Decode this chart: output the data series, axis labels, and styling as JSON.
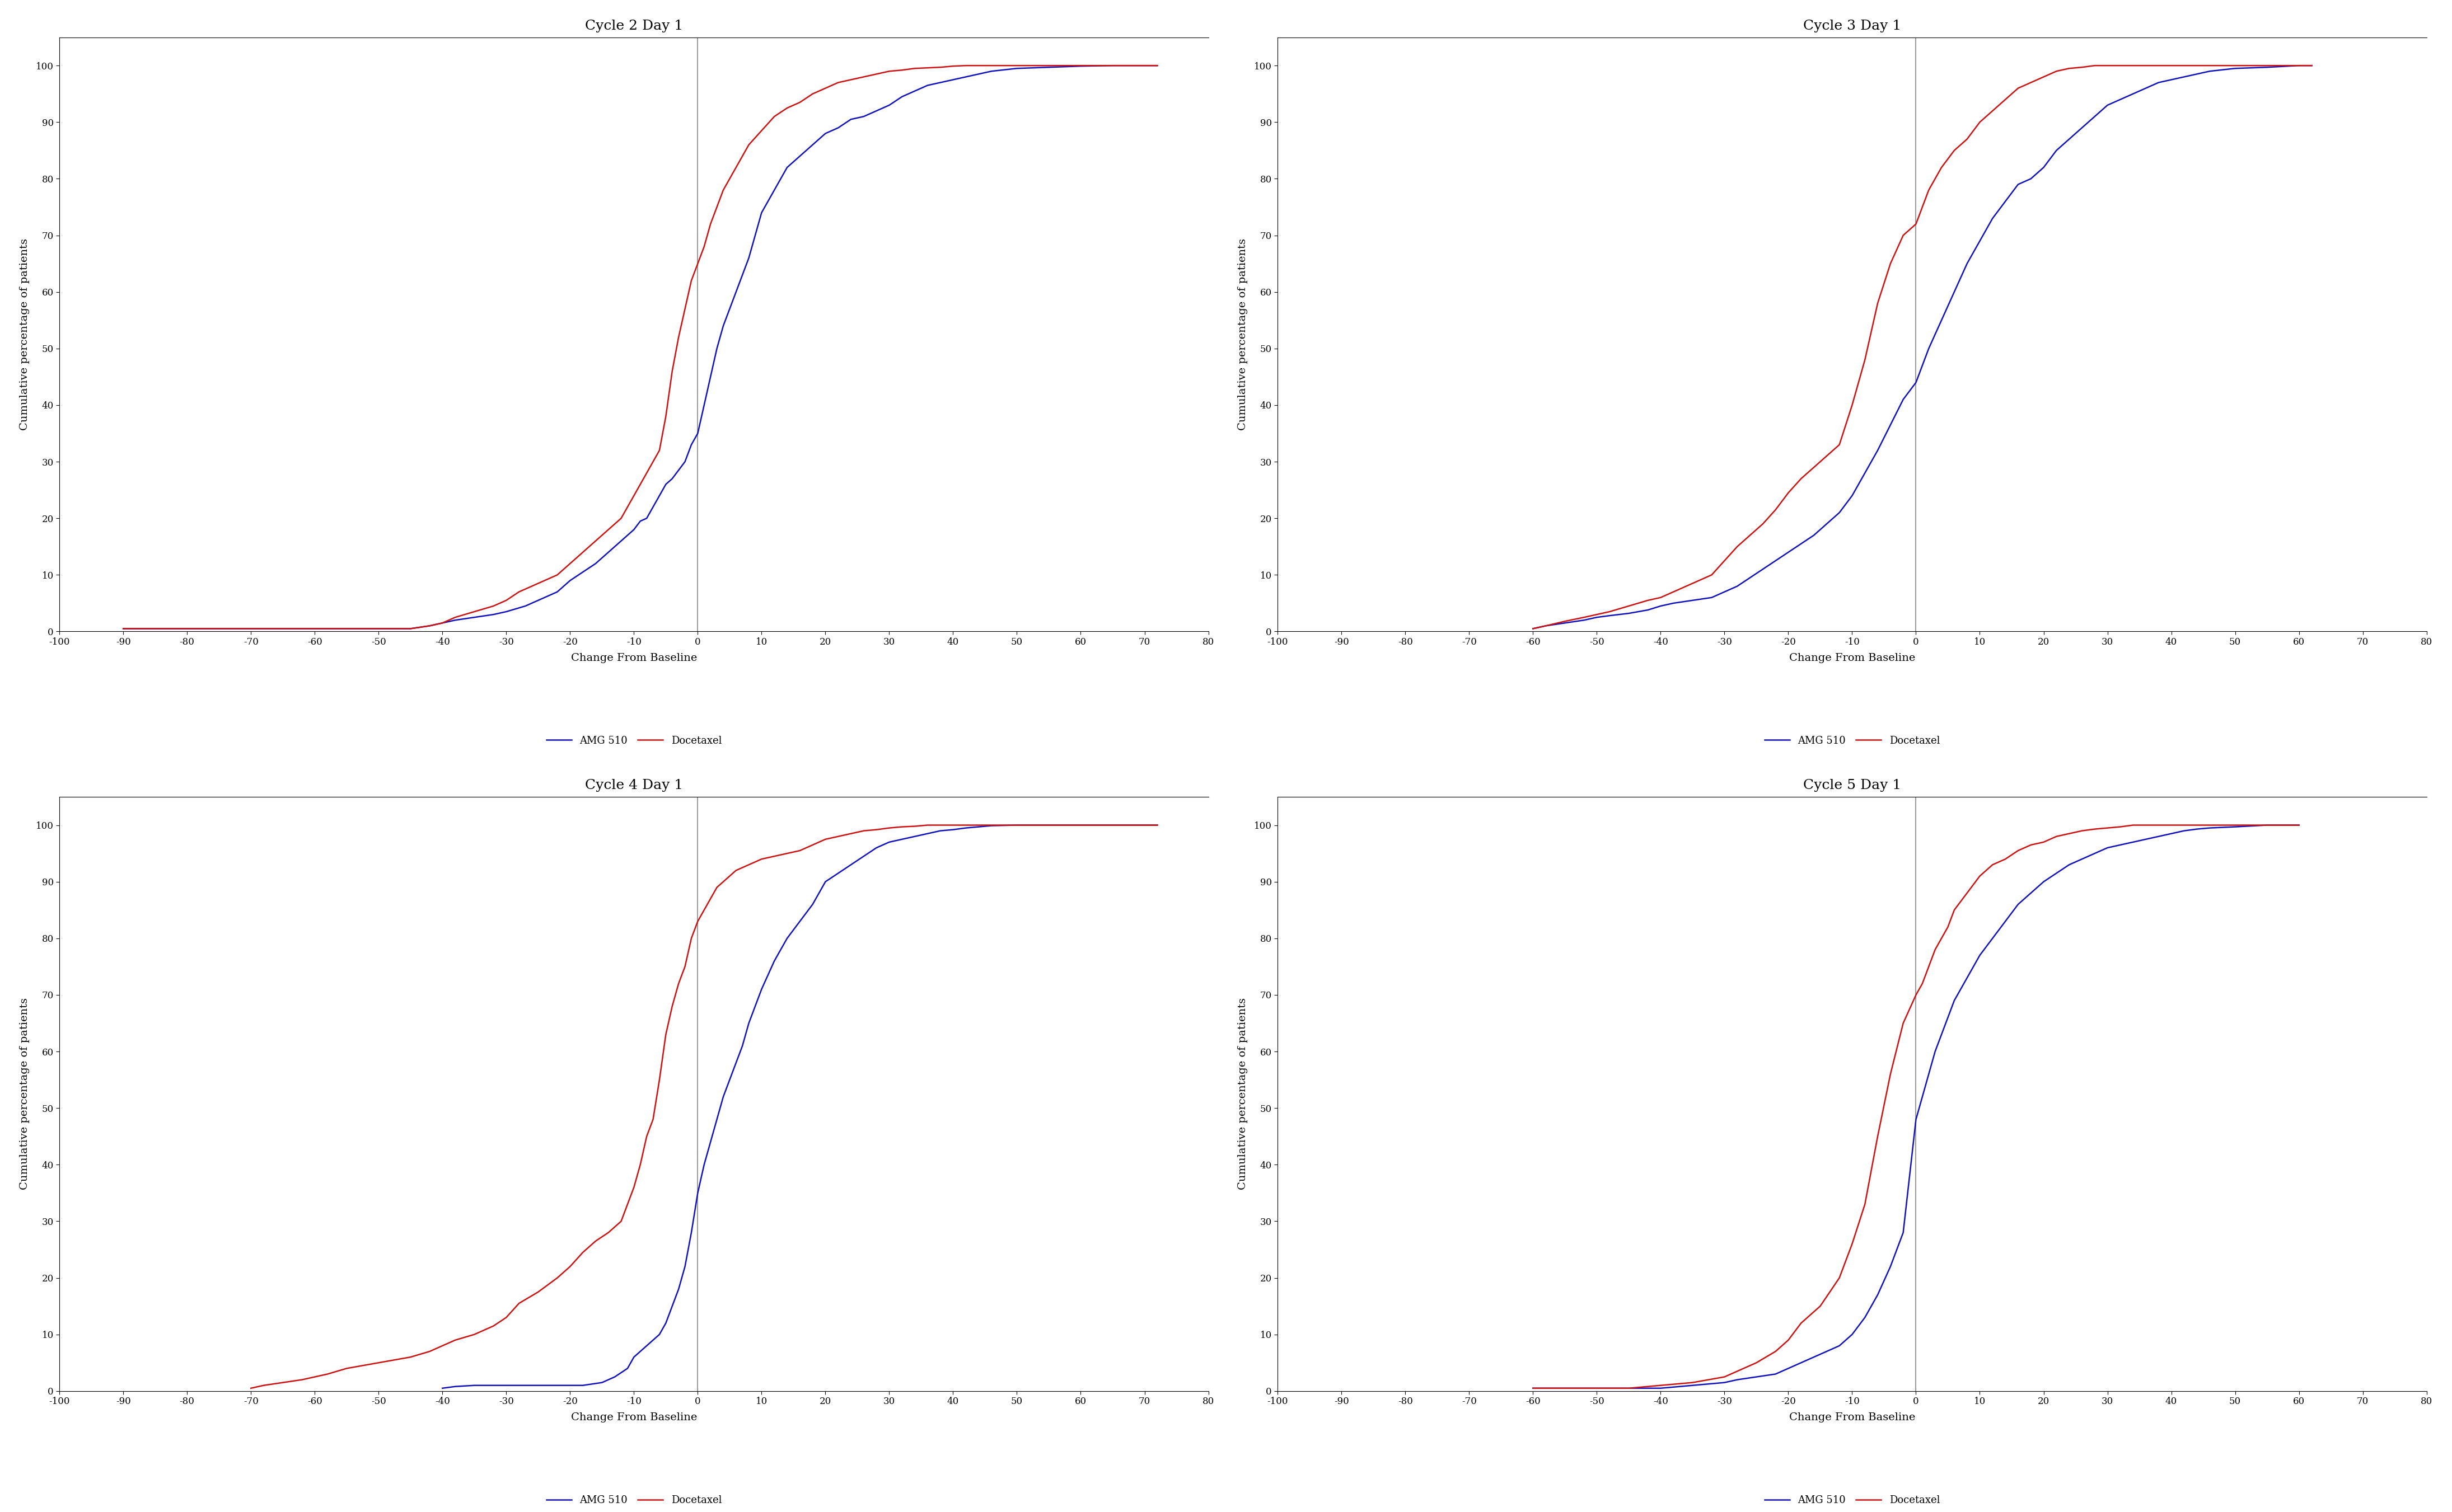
{
  "panels": [
    {
      "title": "Cycle 2 Day 1",
      "xlim": [
        -100,
        80
      ],
      "xticks": [
        -100,
        -90,
        -80,
        -70,
        -60,
        -50,
        -40,
        -30,
        -20,
        -10,
        0,
        10,
        20,
        30,
        40,
        50,
        60,
        70,
        80
      ],
      "amg_x": [
        -90,
        -88,
        -85,
        -82,
        -80,
        -75,
        -70,
        -65,
        -60,
        -55,
        -50,
        -45,
        -42,
        -40,
        -38,
        -35,
        -32,
        -30,
        -27,
        -25,
        -22,
        -20,
        -18,
        -16,
        -14,
        -12,
        -10,
        -9,
        -8,
        -7,
        -6,
        -5,
        -4,
        -3,
        -2,
        -1,
        0,
        1,
        2,
        3,
        4,
        5,
        6,
        7,
        8,
        9,
        10,
        11,
        12,
        14,
        16,
        18,
        20,
        22,
        24,
        26,
        28,
        30,
        32,
        34,
        36,
        38,
        40,
        42,
        44,
        46,
        50,
        55,
        60,
        65,
        70,
        72
      ],
      "amg_y": [
        0.5,
        0.5,
        0.5,
        0.5,
        0.5,
        0.5,
        0.5,
        0.5,
        0.5,
        0.5,
        0.5,
        0.5,
        1.0,
        1.5,
        2.0,
        2.5,
        3.0,
        3.5,
        4.5,
        5.5,
        7.0,
        9.0,
        10.5,
        12.0,
        14.0,
        16.0,
        18.0,
        19.5,
        20.0,
        22.0,
        24.0,
        26.0,
        27.0,
        28.5,
        30.0,
        33.0,
        35.0,
        40.0,
        45.0,
        50.0,
        54.0,
        57.0,
        60.0,
        63.0,
        66.0,
        70.0,
        74.0,
        76.0,
        78.0,
        82.0,
        84.0,
        86.0,
        88.0,
        89.0,
        90.5,
        91.0,
        92.0,
        93.0,
        94.5,
        95.5,
        96.5,
        97.0,
        97.5,
        98.0,
        98.5,
        99.0,
        99.5,
        99.7,
        99.9,
        100.0,
        100.0,
        100.0
      ],
      "doc_x": [
        -90,
        -85,
        -80,
        -75,
        -70,
        -65,
        -60,
        -55,
        -50,
        -45,
        -42,
        -40,
        -38,
        -35,
        -32,
        -30,
        -28,
        -25,
        -22,
        -20,
        -18,
        -16,
        -14,
        -12,
        -11,
        -10,
        -9,
        -8,
        -7,
        -6,
        -5,
        -4,
        -3,
        -2,
        -1,
        0,
        1,
        2,
        3,
        4,
        5,
        6,
        8,
        10,
        12,
        14,
        16,
        18,
        20,
        22,
        24,
        26,
        28,
        30,
        32,
        34,
        36,
        38,
        40,
        42,
        44,
        46,
        50,
        55,
        65,
        70,
        72
      ],
      "doc_y": [
        0.5,
        0.5,
        0.5,
        0.5,
        0.5,
        0.5,
        0.5,
        0.5,
        0.5,
        0.5,
        1.0,
        1.5,
        2.5,
        3.5,
        4.5,
        5.5,
        7.0,
        8.5,
        10.0,
        12.0,
        14.0,
        16.0,
        18.0,
        20.0,
        22.0,
        24.0,
        26.0,
        28.0,
        30.0,
        32.0,
        38.0,
        46.0,
        52.0,
        57.0,
        62.0,
        65.0,
        68.0,
        72.0,
        75.0,
        78.0,
        80.0,
        82.0,
        86.0,
        88.5,
        91.0,
        92.5,
        93.5,
        95.0,
        96.0,
        97.0,
        97.5,
        98.0,
        98.5,
        99.0,
        99.2,
        99.5,
        99.6,
        99.7,
        99.9,
        100.0,
        100.0,
        100.0,
        100.0,
        100.0,
        100.0,
        100.0,
        100.0
      ]
    },
    {
      "title": "Cycle 3 Day 1",
      "xlim": [
        -100,
        80
      ],
      "xticks": [
        -100,
        -90,
        -80,
        -70,
        -60,
        -50,
        -40,
        -30,
        -20,
        -10,
        0,
        10,
        20,
        30,
        40,
        50,
        60,
        70,
        80
      ],
      "amg_x": [
        -60,
        -58,
        -55,
        -52,
        -50,
        -48,
        -45,
        -42,
        -40,
        -38,
        -35,
        -32,
        -30,
        -28,
        -26,
        -24,
        -22,
        -20,
        -18,
        -16,
        -14,
        -12,
        -10,
        -8,
        -6,
        -4,
        -2,
        0,
        2,
        4,
        6,
        8,
        10,
        12,
        14,
        16,
        18,
        20,
        22,
        24,
        26,
        28,
        30,
        32,
        34,
        36,
        38,
        40,
        42,
        44,
        46,
        50,
        55,
        60,
        62
      ],
      "amg_y": [
        0.5,
        1.0,
        1.5,
        2.0,
        2.5,
        2.8,
        3.2,
        3.8,
        4.5,
        5.0,
        5.5,
        6.0,
        7.0,
        8.0,
        9.5,
        11.0,
        12.5,
        14.0,
        15.5,
        17.0,
        19.0,
        21.0,
        24.0,
        28.0,
        32.0,
        36.5,
        41.0,
        44.0,
        50.0,
        55.0,
        60.0,
        65.0,
        69.0,
        73.0,
        76.0,
        79.0,
        80.0,
        82.0,
        85.0,
        87.0,
        89.0,
        91.0,
        93.0,
        94.0,
        95.0,
        96.0,
        97.0,
        97.5,
        98.0,
        98.5,
        99.0,
        99.5,
        99.7,
        100.0,
        100.0
      ],
      "doc_x": [
        -60,
        -58,
        -55,
        -52,
        -50,
        -48,
        -45,
        -42,
        -40,
        -38,
        -35,
        -32,
        -30,
        -28,
        -26,
        -24,
        -22,
        -20,
        -18,
        -16,
        -14,
        -12,
        -10,
        -8,
        -6,
        -4,
        -2,
        0,
        2,
        4,
        6,
        8,
        10,
        12,
        14,
        16,
        18,
        20,
        22,
        24,
        26,
        28,
        30,
        32,
        34,
        36,
        38,
        40,
        42,
        44,
        46,
        50,
        55,
        60,
        62
      ],
      "doc_y": [
        0.5,
        1.0,
        1.8,
        2.5,
        3.0,
        3.5,
        4.5,
        5.5,
        6.0,
        7.0,
        8.5,
        10.0,
        12.5,
        15.0,
        17.0,
        19.0,
        21.5,
        24.5,
        27.0,
        29.0,
        31.0,
        33.0,
        40.0,
        48.0,
        58.0,
        65.0,
        70.0,
        72.0,
        78.0,
        82.0,
        85.0,
        87.0,
        90.0,
        92.0,
        94.0,
        96.0,
        97.0,
        98.0,
        99.0,
        99.5,
        99.7,
        100.0,
        100.0,
        100.0,
        100.0,
        100.0,
        100.0,
        100.0,
        100.0,
        100.0,
        100.0,
        100.0,
        100.0,
        100.0,
        100.0
      ]
    },
    {
      "title": "Cycle 4 Day 1",
      "xlim": [
        -100,
        80
      ],
      "xticks": [
        -100,
        -90,
        -80,
        -70,
        -60,
        -50,
        -40,
        -30,
        -20,
        -10,
        0,
        10,
        20,
        30,
        40,
        50,
        60,
        70,
        80
      ],
      "amg_x": [
        -40,
        -38,
        -35,
        -32,
        -30,
        -28,
        -25,
        -22,
        -20,
        -18,
        -15,
        -13,
        -11,
        -10,
        -9,
        -8,
        -7,
        -6,
        -5,
        -4,
        -3,
        -2,
        -1,
        0,
        1,
        2,
        3,
        4,
        5,
        6,
        7,
        8,
        10,
        12,
        14,
        16,
        18,
        20,
        22,
        24,
        26,
        28,
        30,
        32,
        34,
        36,
        38,
        40,
        42,
        44,
        46,
        50,
        55,
        60,
        65,
        70,
        72
      ],
      "amg_y": [
        0.5,
        0.8,
        1.0,
        1.0,
        1.0,
        1.0,
        1.0,
        1.0,
        1.0,
        1.0,
        1.5,
        2.5,
        4.0,
        6.0,
        7.0,
        8.0,
        9.0,
        10.0,
        12.0,
        15.0,
        18.0,
        22.0,
        28.0,
        35.0,
        40.0,
        44.0,
        48.0,
        52.0,
        55.0,
        58.0,
        61.0,
        65.0,
        71.0,
        76.0,
        80.0,
        83.0,
        86.0,
        90.0,
        91.5,
        93.0,
        94.5,
        96.0,
        97.0,
        97.5,
        98.0,
        98.5,
        99.0,
        99.2,
        99.5,
        99.7,
        99.9,
        100.0,
        100.0,
        100.0,
        100.0,
        100.0,
        100.0
      ],
      "doc_x": [
        -70,
        -68,
        -65,
        -62,
        -60,
        -58,
        -55,
        -50,
        -45,
        -42,
        -40,
        -38,
        -35,
        -32,
        -30,
        -28,
        -25,
        -22,
        -20,
        -18,
        -16,
        -14,
        -12,
        -10,
        -9,
        -8,
        -7,
        -6,
        -5,
        -4,
        -3,
        -2,
        -1,
        0,
        1,
        2,
        3,
        4,
        5,
        6,
        8,
        10,
        12,
        14,
        16,
        18,
        20,
        22,
        24,
        26,
        28,
        30,
        32,
        34,
        36,
        38,
        40,
        42,
        44,
        50,
        55,
        60,
        65,
        70,
        72
      ],
      "doc_y": [
        0.5,
        1.0,
        1.5,
        2.0,
        2.5,
        3.0,
        4.0,
        5.0,
        6.0,
        7.0,
        8.0,
        9.0,
        10.0,
        11.5,
        13.0,
        15.5,
        17.5,
        20.0,
        22.0,
        24.5,
        26.5,
        28.0,
        30.0,
        36.0,
        40.0,
        45.0,
        48.0,
        55.0,
        63.0,
        68.0,
        72.0,
        75.0,
        80.0,
        83.0,
        85.0,
        87.0,
        89.0,
        90.0,
        91.0,
        92.0,
        93.0,
        94.0,
        94.5,
        95.0,
        95.5,
        96.5,
        97.5,
        98.0,
        98.5,
        99.0,
        99.2,
        99.5,
        99.7,
        99.8,
        100.0,
        100.0,
        100.0,
        100.0,
        100.0,
        100.0,
        100.0,
        100.0,
        100.0,
        100.0,
        100.0
      ]
    },
    {
      "title": "Cycle 5 Day 1",
      "xlim": [
        -100,
        80
      ],
      "xticks": [
        -100,
        -90,
        -80,
        -70,
        -60,
        -50,
        -40,
        -30,
        -20,
        -10,
        0,
        10,
        20,
        30,
        40,
        50,
        60,
        70,
        80
      ],
      "amg_x": [
        -60,
        -58,
        -55,
        -50,
        -45,
        -40,
        -35,
        -30,
        -28,
        -25,
        -22,
        -20,
        -18,
        -15,
        -12,
        -10,
        -8,
        -6,
        -4,
        -2,
        0,
        1,
        2,
        3,
        4,
        5,
        6,
        8,
        10,
        12,
        14,
        16,
        18,
        20,
        22,
        24,
        26,
        28,
        30,
        32,
        34,
        36,
        38,
        40,
        42,
        44,
        46,
        50,
        55,
        60
      ],
      "amg_y": [
        0.5,
        0.5,
        0.5,
        0.5,
        0.5,
        0.5,
        1.0,
        1.5,
        2.0,
        2.5,
        3.0,
        4.0,
        5.0,
        6.5,
        8.0,
        10.0,
        13.0,
        17.0,
        22.0,
        28.0,
        48.0,
        52.0,
        56.0,
        60.0,
        63.0,
        66.0,
        69.0,
        73.0,
        77.0,
        80.0,
        83.0,
        86.0,
        88.0,
        90.0,
        91.5,
        93.0,
        94.0,
        95.0,
        96.0,
        96.5,
        97.0,
        97.5,
        98.0,
        98.5,
        99.0,
        99.3,
        99.5,
        99.7,
        100.0,
        100.0
      ],
      "doc_x": [
        -60,
        -58,
        -55,
        -50,
        -45,
        -40,
        -35,
        -30,
        -28,
        -25,
        -22,
        -20,
        -18,
        -15,
        -12,
        -10,
        -8,
        -6,
        -4,
        -2,
        0,
        1,
        2,
        3,
        4,
        5,
        6,
        8,
        10,
        12,
        14,
        16,
        18,
        20,
        22,
        24,
        26,
        28,
        30,
        32,
        34,
        36,
        38,
        40,
        42,
        44,
        46,
        50,
        55,
        60
      ],
      "doc_y": [
        0.5,
        0.5,
        0.5,
        0.5,
        0.5,
        1.0,
        1.5,
        2.5,
        3.5,
        5.0,
        7.0,
        9.0,
        12.0,
        15.0,
        20.0,
        26.0,
        33.0,
        45.0,
        56.0,
        65.0,
        70.0,
        72.0,
        75.0,
        78.0,
        80.0,
        82.0,
        85.0,
        88.0,
        91.0,
        93.0,
        94.0,
        95.5,
        96.5,
        97.0,
        98.0,
        98.5,
        99.0,
        99.3,
        99.5,
        99.7,
        100.0,
        100.0,
        100.0,
        100.0,
        100.0,
        100.0,
        100.0,
        100.0,
        100.0,
        100.0
      ]
    }
  ],
  "amg_color": "#1111BB",
  "doc_color": "#CC1111",
  "amg_label": "AMG 510",
  "doc_label": "Docetaxel",
  "ylabel": "Cumulative percentage of patients",
  "xlabel": "Change From Baseline",
  "ylim": [
    0,
    105
  ],
  "yticks": [
    0,
    10,
    20,
    30,
    40,
    50,
    60,
    70,
    80,
    90,
    100
  ],
  "bg_color": "#FFFFFF",
  "line_width": 1.8,
  "title_fontsize": 18,
  "label_fontsize": 14,
  "tick_fontsize": 12,
  "legend_fontsize": 13
}
